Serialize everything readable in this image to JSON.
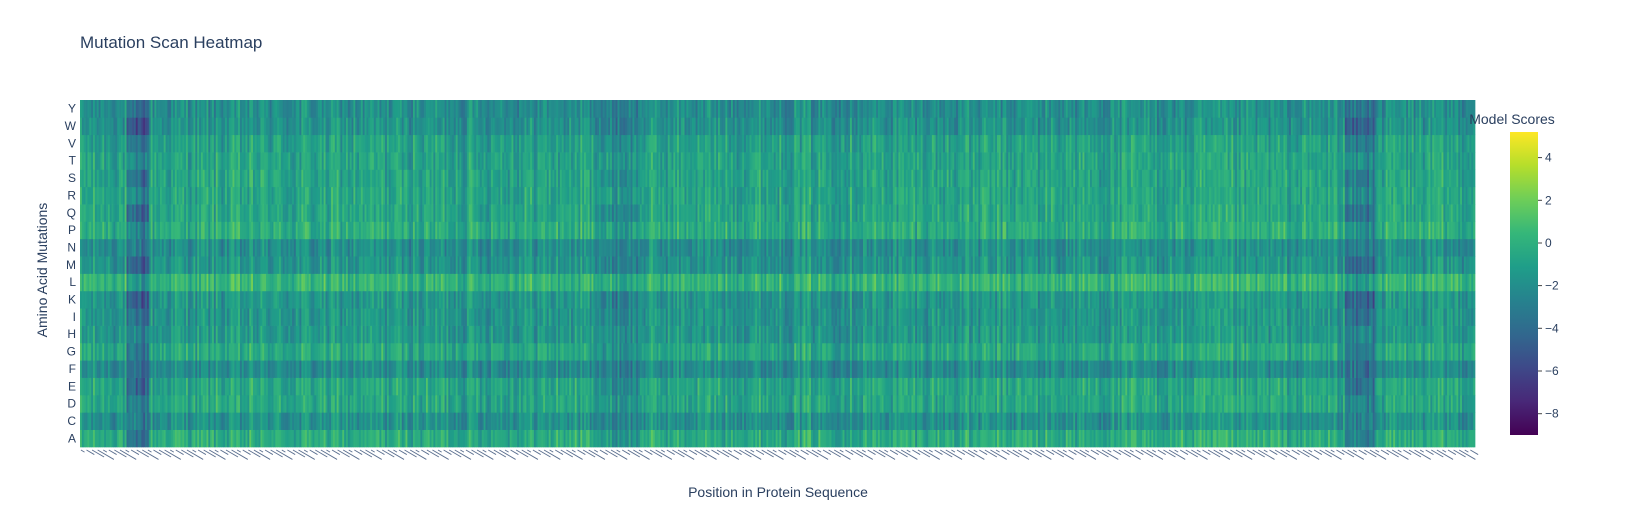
{
  "chart_data": {
    "type": "heatmap",
    "title": "Mutation Scan Heatmap",
    "xlabel": "Position in Protein Sequence",
    "ylabel": "Amino Acid Mutations",
    "y_categories": [
      "A",
      "C",
      "D",
      "E",
      "F",
      "G",
      "H",
      "I",
      "K",
      "L",
      "M",
      "N",
      "P",
      "Q",
      "R",
      "S",
      "T",
      "V",
      "W",
      "Y"
    ],
    "x_count": 750,
    "colorscale": "viridis",
    "colorscale_stops": [
      "#440154",
      "#482878",
      "#3e4989",
      "#31688e",
      "#26828e",
      "#1f9e89",
      "#35b779",
      "#6ece58",
      "#b5de2b",
      "#fde725"
    ],
    "zmin": -9,
    "zmax": 5.2,
    "colorbar": {
      "title": "Model Scores",
      "ticks": [
        4,
        2,
        0,
        -2,
        -4,
        -6,
        -8
      ],
      "tick_labels": [
        "4",
        "2",
        "0",
        "−2",
        "−4",
        "−6",
        "−8"
      ]
    },
    "row_bias": {
      "A": -0.3,
      "C": -1.8,
      "D": -0.6,
      "E": -0.6,
      "F": -2.2,
      "G": -0.5,
      "H": -1.4,
      "I": -1.5,
      "K": -1.5,
      "L": 0.3,
      "M": -1.6,
      "N": -2.0,
      "P": -0.2,
      "Q": -0.6,
      "R": -0.7,
      "S": -0.7,
      "T": -0.8,
      "V": -0.9,
      "W": -1.8,
      "Y": -2.0
    },
    "notes_regions": [
      {
        "from": 25,
        "to": 36,
        "score_shift": -4.0
      },
      {
        "from": 680,
        "to": 695,
        "score_shift": -3.0
      },
      {
        "from": 280,
        "to": 300,
        "score_shift": -1.5
      }
    ]
  }
}
